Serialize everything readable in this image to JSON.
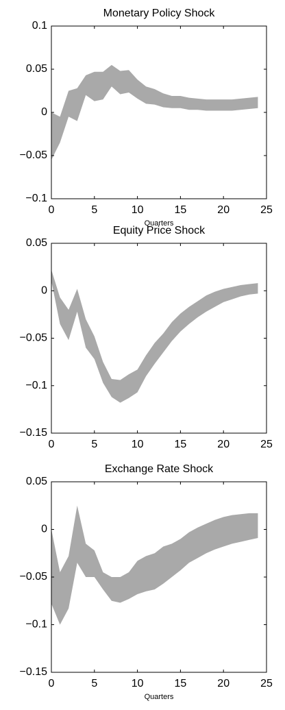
{
  "chart_data": [
    {
      "type": "band",
      "title": "Monetary Policy Shock",
      "x_label": "Quarters",
      "color": "#a9a9a9",
      "x": [
        0,
        1,
        2,
        3,
        4,
        5,
        6,
        7,
        8,
        9,
        10,
        11,
        12,
        13,
        14,
        15,
        16,
        17,
        18,
        19,
        20,
        21,
        22,
        23,
        24
      ],
      "upper": [
        0,
        -0.005,
        0.025,
        0.028,
        0.043,
        0.047,
        0.047,
        0.055,
        0.048,
        0.049,
        0.038,
        0.03,
        0.027,
        0.022,
        0.019,
        0.019,
        0.017,
        0.016,
        0.015,
        0.015,
        0.015,
        0.015,
        0.016,
        0.017,
        0.018
      ],
      "lower": [
        -0.055,
        -0.035,
        -0.005,
        -0.01,
        0.02,
        0.013,
        0.015,
        0.03,
        0.021,
        0.023,
        0.016,
        0.01,
        0.009,
        0.006,
        0.005,
        0.005,
        0.003,
        0.003,
        0.002,
        0.002,
        0.002,
        0.002,
        0.003,
        0.004,
        0.005
      ],
      "xlim": [
        0,
        25
      ],
      "xticks": [
        0,
        5,
        10,
        15,
        20,
        25
      ],
      "ylim": [
        -0.1,
        0.1
      ],
      "yticks": [
        {
          "value": -0.1,
          "label": "−0.1"
        },
        {
          "value": -0.05,
          "label": "−0.05"
        },
        0,
        0.05,
        0.1
      ]
    },
    {
      "type": "band",
      "title": "Equity Price Shock",
      "color": "#a9a9a9",
      "x": [
        0,
        1,
        2,
        3,
        4,
        5,
        6,
        7,
        8,
        9,
        10,
        11,
        12,
        13,
        14,
        15,
        16,
        17,
        18,
        19,
        20,
        21,
        22,
        23,
        24
      ],
      "upper": [
        0.022,
        -0.007,
        -0.02,
        0.002,
        -0.03,
        -0.048,
        -0.075,
        -0.093,
        -0.094,
        -0.088,
        -0.083,
        -0.068,
        -0.055,
        -0.045,
        -0.033,
        -0.024,
        -0.017,
        -0.011,
        -0.005,
        -0.001,
        0.002,
        0.004,
        0.006,
        0.007,
        0.008
      ],
      "lower": [
        0.01,
        -0.035,
        -0.052,
        -0.022,
        -0.06,
        -0.072,
        -0.097,
        -0.112,
        -0.118,
        -0.113,
        -0.107,
        -0.09,
        -0.077,
        -0.065,
        -0.053,
        -0.043,
        -0.035,
        -0.028,
        -0.022,
        -0.017,
        -0.012,
        -0.009,
        -0.006,
        -0.004,
        -0.003
      ],
      "xlim": [
        0,
        25
      ],
      "xticks": [
        0,
        5,
        10,
        15,
        20,
        25
      ],
      "ylim": [
        -0.15,
        0.05
      ],
      "yticks": [
        {
          "value": -0.15,
          "label": "−0.15"
        },
        {
          "value": -0.1,
          "label": "−0.1"
        },
        {
          "value": -0.05,
          "label": "−0.05"
        },
        0,
        0.05
      ]
    },
    {
      "type": "band",
      "title": "Exchange Rate Shock",
      "x_label": "Quarters",
      "color": "#a9a9a9",
      "x": [
        0,
        1,
        2,
        3,
        4,
        5,
        6,
        7,
        8,
        9,
        10,
        11,
        12,
        13,
        14,
        15,
        16,
        17,
        18,
        19,
        20,
        21,
        22,
        23,
        24
      ],
      "upper": [
        0,
        -0.045,
        -0.028,
        0.025,
        -0.015,
        -0.022,
        -0.045,
        -0.05,
        -0.05,
        -0.045,
        -0.033,
        -0.028,
        -0.025,
        -0.018,
        -0.015,
        -0.01,
        -0.003,
        0.002,
        0.006,
        0.01,
        0.013,
        0.015,
        0.016,
        0.017,
        0.017
      ],
      "lower": [
        -0.078,
        -0.1,
        -0.083,
        -0.035,
        -0.05,
        -0.05,
        -0.063,
        -0.075,
        -0.077,
        -0.073,
        -0.068,
        -0.065,
        -0.063,
        -0.057,
        -0.05,
        -0.043,
        -0.035,
        -0.03,
        -0.025,
        -0.021,
        -0.018,
        -0.015,
        -0.013,
        -0.011,
        -0.009
      ],
      "xlim": [
        0,
        25
      ],
      "xticks": [
        0,
        5,
        10,
        15,
        20,
        25
      ],
      "ylim": [
        -0.15,
        0.05
      ],
      "yticks": [
        {
          "value": -0.15,
          "label": "−0.15"
        },
        {
          "value": -0.1,
          "label": "−0.1"
        },
        {
          "value": -0.05,
          "label": "−0.05"
        },
        0,
        0.05
      ]
    }
  ]
}
